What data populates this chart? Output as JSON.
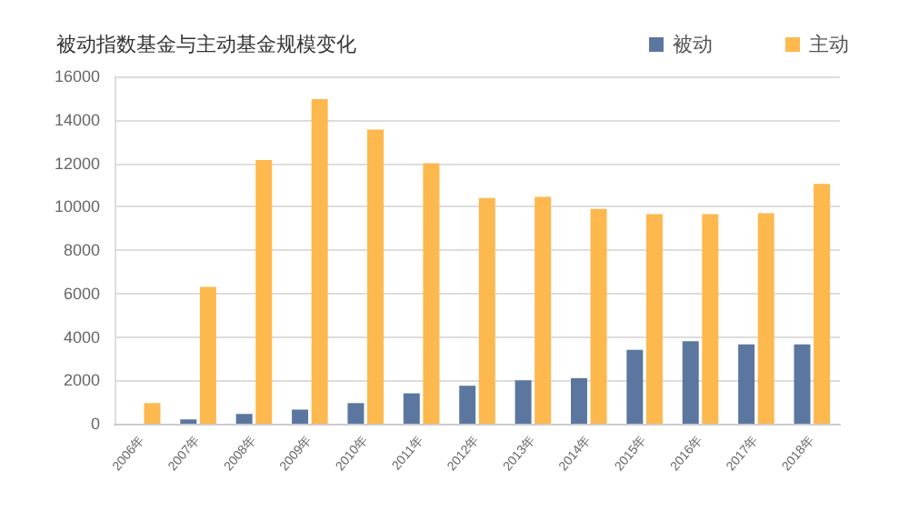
{
  "chart_data": {
    "type": "bar",
    "title": "被动指数基金与主动基金规模变化",
    "categories": [
      "2006年",
      "2007年",
      "2008年",
      "2009年",
      "2010年",
      "2011年",
      "2012年",
      "2013年",
      "2014年",
      "2015年",
      "2016年",
      "2017年",
      "2018年"
    ],
    "series": [
      {
        "name": "被动",
        "color": "#5b77a0",
        "values": [
          0,
          200,
          450,
          650,
          950,
          1400,
          1750,
          2000,
          2100,
          3400,
          3800,
          3650,
          3650
        ]
      },
      {
        "name": "主动",
        "color": "#fdb84e",
        "values": [
          950,
          6300,
          12150,
          14950,
          13550,
          12000,
          10400,
          10450,
          9900,
          9650,
          9650,
          9700,
          11050
        ]
      }
    ],
    "ylim": [
      0,
      16000
    ],
    "yticks": [
      0,
      2000,
      4000,
      6000,
      8000,
      10000,
      12000,
      14000,
      16000
    ],
    "grid": "y",
    "legend": "top right"
  }
}
